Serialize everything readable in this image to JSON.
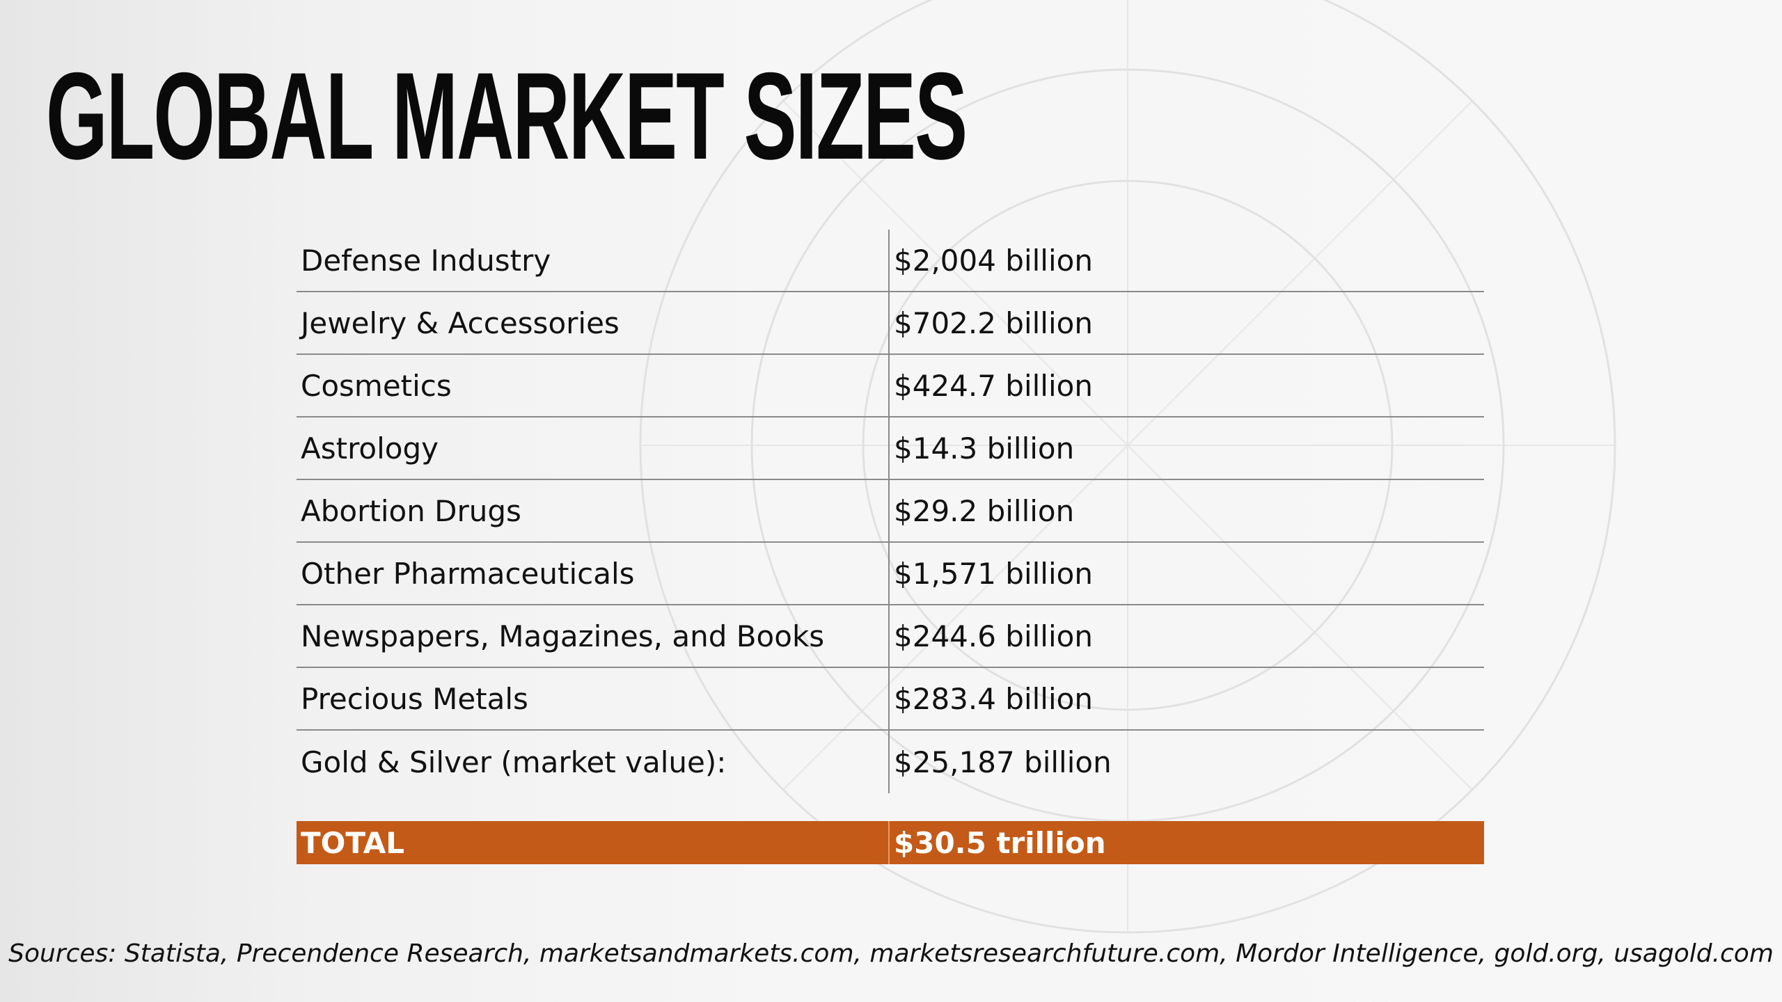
{
  "title": "GLOBAL MARKET SIZES",
  "markets": [
    {
      "name": "Defense Industry",
      "value": "$2,004 billion"
    },
    {
      "name": "Jewelry & Accessories",
      "value": "$702.2 billion"
    },
    {
      "name": "Cosmetics",
      "value": "$424.7 billion"
    },
    {
      "name": "Astrology",
      "value": "$14.3 billion"
    },
    {
      "name": "Abortion Drugs",
      "value": "$29.2 billion"
    },
    {
      "name": "Other Pharmaceuticals",
      "value": "$1,571 billion"
    },
    {
      "name": "Newspapers, Magazines, and Books",
      "value": "$244.6 billion"
    },
    {
      "name": "Precious Metals",
      "value": "$283.4 billion"
    },
    {
      "name": "Gold & Silver (market value):",
      "value": "$25,187 billion"
    }
  ],
  "total": {
    "label": "TOTAL",
    "value": "$30.5 trillion"
  },
  "sources": "Sources: Statista, Precendence Research, marketsandmarkets.com, marketsresearchfuture.com, Mordor Intelligence, gold.org, usagold.com",
  "colors": {
    "accent": "#c45a17",
    "background": "#f6f6f6",
    "text": "#111111"
  }
}
